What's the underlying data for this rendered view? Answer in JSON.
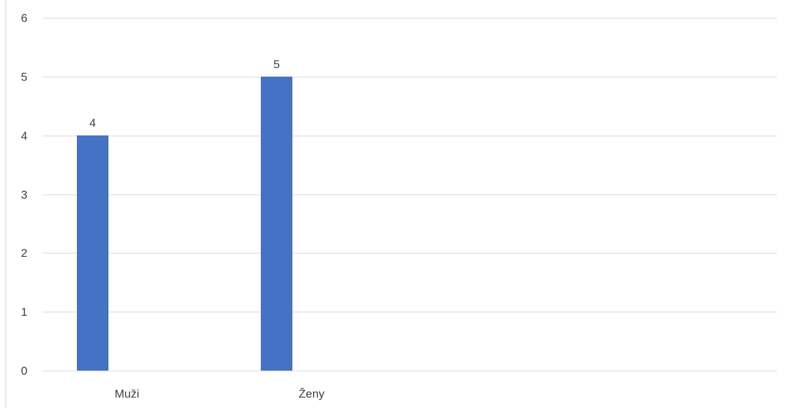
{
  "chart_data": {
    "type": "bar",
    "categories": [
      "Muži",
      "Ženy"
    ],
    "values": [
      4,
      5
    ],
    "data_labels": [
      "4",
      "5"
    ],
    "ylim": [
      0,
      6
    ],
    "yticks": [
      "0",
      "1",
      "2",
      "3",
      "4",
      "5",
      "6"
    ],
    "grid": true,
    "legend": "none",
    "colors": {
      "bar": "#4472C4",
      "grid": "#D9D9D9",
      "text": "#404040",
      "frame": "#D0D0D0"
    }
  }
}
